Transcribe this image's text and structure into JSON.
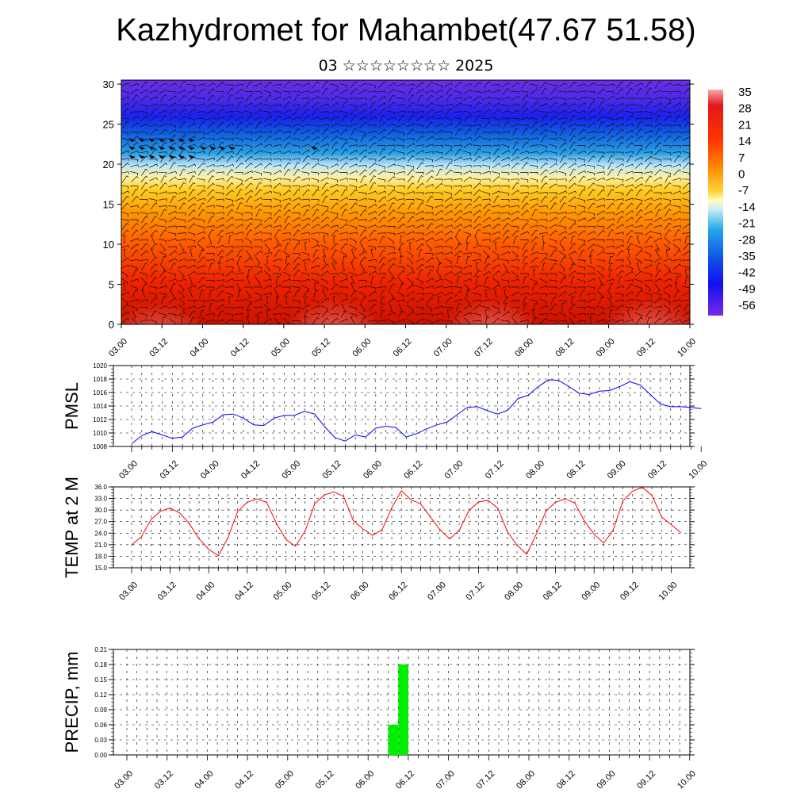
{
  "title": "Kazhydromet for Mahambet(47.67 51.58)",
  "subtitle": "03 ☆☆☆☆☆☆☆☆ 2025",
  "colors": {
    "pmsl_line": "#0000ff",
    "temp_line": "#ff0000",
    "precip_bar": "#00ee00"
  },
  "chart_data": [
    {
      "type": "heatmap",
      "title": "",
      "x_ticks": [
        "03.00",
        "03.12",
        "04.00",
        "04.12",
        "05.00",
        "05.12",
        "06.00",
        "06.12",
        "07.00",
        "07.12",
        "08.00",
        "08.12",
        "09.00",
        "09.12",
        "10.00"
      ],
      "y_ticks": [
        "0",
        "5",
        "10",
        "15",
        "20",
        "25",
        "30"
      ],
      "ylim": [
        0,
        30.5
      ],
      "overlay": "wind barbs",
      "colorbar": {
        "labels": [
          "35",
          "28",
          "21",
          "14",
          "7",
          "0",
          "-7",
          "-14",
          "-21",
          "-28",
          "-35",
          "-42",
          "-49",
          "-56"
        ],
        "palette": "red-yellow-blue-purple"
      },
      "vertical_temperature_profile": {
        "levels": [
          0,
          5,
          10,
          14,
          17,
          20,
          23,
          26,
          30
        ],
        "values": [
          30,
          24,
          12,
          0,
          -14,
          -35,
          -50,
          -56,
          -52
        ]
      }
    },
    {
      "type": "line",
      "ylabel": "PMSL",
      "x_ticks": [
        "03.00",
        "03.12",
        "04.00",
        "04.12",
        "05.00",
        "05.12",
        "06.00",
        "06.12",
        "07.00",
        "07.12",
        "08.00",
        "08.12",
        "09.00",
        "09.12",
        "10.00"
      ],
      "y_ticks": [
        "1008",
        "1010",
        "1012",
        "1014",
        "1016",
        "1018",
        "1020"
      ],
      "ylim": [
        1008,
        1020
      ],
      "grid": true,
      "series": [
        {
          "values": [
            1008.4,
            1009.6,
            1010.2,
            1009.7,
            1009.2,
            1009.4,
            1010.7,
            1011.2,
            1011.6,
            1012.7,
            1012.8,
            1012.2,
            1011.2,
            1011.1,
            1012.2,
            1012.6,
            1012.6,
            1013.2,
            1012.8,
            1010.9,
            1009.3,
            1008.8,
            1009.7,
            1009.4,
            1010.7,
            1011.0,
            1010.8,
            1009.4,
            1009.9,
            1010.6,
            1011.2,
            1011.6,
            1012.7,
            1013.8,
            1013.9,
            1013.3,
            1012.8,
            1013.4,
            1015.1,
            1015.6,
            1016.9,
            1017.9,
            1017.8,
            1016.9,
            1015.9,
            1015.7,
            1016.2,
            1016.3,
            1016.9,
            1017.6,
            1017.1,
            1015.7,
            1014.3,
            1013.9,
            1013.9,
            1013.8,
            1013.6
          ]
        }
      ]
    },
    {
      "type": "line",
      "ylabel": "TEMP at 2 M",
      "x_ticks": [
        "03.00",
        "03.12",
        "04.00",
        "04.12",
        "05.00",
        "05.12",
        "06.00",
        "06.12",
        "07.00",
        "07.12",
        "08.00",
        "08.12",
        "09.00",
        "09.12",
        "10.00"
      ],
      "y_ticks": [
        "15.0",
        "18.0",
        "21.0",
        "24.0",
        "27.0",
        "30.0",
        "33.0",
        "36.0"
      ],
      "ylim": [
        15,
        36
      ],
      "grid": true,
      "series": [
        {
          "values": [
            21.0,
            23.0,
            27.5,
            29.7,
            30.5,
            29.2,
            26.4,
            22.5,
            19.8,
            18.1,
            22.8,
            29.6,
            32.0,
            32.9,
            32.0,
            26.7,
            22.4,
            20.6,
            24.5,
            31.6,
            33.9,
            34.7,
            33.5,
            27.3,
            25.1,
            23.4,
            24.9,
            30.6,
            35.0,
            32.6,
            31.6,
            28.2,
            24.9,
            22.5,
            24.7,
            29.8,
            32.1,
            32.5,
            30.5,
            24.3,
            20.9,
            18.5,
            23.7,
            29.7,
            32.0,
            32.9,
            31.8,
            27.1,
            23.7,
            21.4,
            24.9,
            32.4,
            34.9,
            35.9,
            33.8,
            28.2,
            26.2,
            24.1
          ]
        }
      ]
    },
    {
      "type": "bar",
      "ylabel": "PRECIP, mm",
      "x_ticks": [
        "03.00",
        "03.12",
        "04.00",
        "04.12",
        "05.00",
        "05.12",
        "06.00",
        "06.12",
        "07.00",
        "07.12",
        "08.00",
        "08.12",
        "09.00",
        "09.12",
        "10.00"
      ],
      "y_ticks": [
        "0.00",
        "0.03",
        "0.06",
        "0.09",
        "0.12",
        "0.15",
        "0.18",
        "0.21"
      ],
      "ylim": [
        0,
        0.21
      ],
      "grid": true,
      "bars": [
        {
          "x": "06.09",
          "value": 0.06
        },
        {
          "x": "06.12",
          "value": 0.18
        }
      ]
    }
  ]
}
